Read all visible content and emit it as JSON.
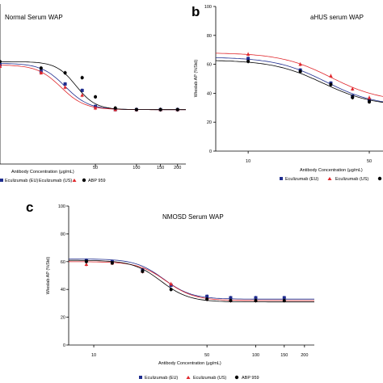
{
  "panels": [
    {
      "id": "a",
      "letter": "",
      "title": "Normal Serum WAP",
      "ylabel": "",
      "xlabel": "Antibody Concentration (μg/mL)",
      "legend": [
        "Eculizumab (EU)",
        "Eculizumab (US)",
        "ABP 959"
      ]
    },
    {
      "id": "b",
      "letter": "b",
      "title": "aHUS serum WAP",
      "ylabel": "Wieslab AP (%Std)",
      "xlabel": "Antibody Concentration (μg/mL)",
      "legend": [
        "Eculizumab (EU)",
        "Eculizumab (US)"
      ]
    },
    {
      "id": "c",
      "letter": "c",
      "title": "NMOSD Serum WAP",
      "ylabel": "Wieslab AP (%Std)",
      "xlabel": "Antibody Concentration (μg/mL)",
      "legend": [
        "Eculizumab (EU)",
        "Eculizumab (US)",
        "ABP 959"
      ]
    }
  ],
  "colors": {
    "eu": "#1f2d8f",
    "us": "#e0262b",
    "abp": "#000000",
    "axis": "#000000"
  },
  "chart_data": [
    {
      "type": "scatter",
      "panel": "a",
      "title": "Normal Serum WAP",
      "xlabel": "Antibody Concentration (μg/mL)",
      "xscale": "log",
      "xticks": [
        50,
        100,
        150,
        200
      ],
      "xlim": [
        10,
        230
      ],
      "ylim": [
        0,
        100
      ],
      "series": [
        {
          "name": "Eculizumab (EU)",
          "marker": "square",
          "x": [
            10,
            20,
            30,
            40,
            50,
            70,
            100,
            150,
            200
          ],
          "y": [
            62,
            58,
            50,
            46,
            36,
            34,
            34,
            34,
            34
          ],
          "curve": {
            "top": 63,
            "bottom": 34,
            "ec50": 30,
            "hill": 5
          }
        },
        {
          "name": "Eculizumab (US)",
          "marker": "triangle",
          "x": [
            10,
            20,
            30,
            40,
            50,
            70,
            100,
            150,
            200
          ],
          "y": [
            61,
            57,
            48,
            43,
            35,
            34,
            34,
            34,
            34
          ],
          "curve": {
            "top": 62,
            "bottom": 34,
            "ec50": 28,
            "hill": 5
          }
        },
        {
          "name": "ABP 959",
          "marker": "circle",
          "x": [
            10,
            20,
            30,
            40,
            50,
            70,
            100,
            150,
            200
          ],
          "y": [
            64,
            60,
            57,
            54,
            42,
            35,
            34,
            34,
            34
          ],
          "curve": {
            "top": 64,
            "bottom": 34,
            "ec50": 36,
            "hill": 6
          }
        }
      ]
    },
    {
      "type": "scatter",
      "panel": "b",
      "title": "aHUS serum WAP",
      "ylabel": "Wieslab AP (%Std)",
      "xlabel": "Antibody Concentration (μg/mL)",
      "xscale": "log",
      "xticks": [
        10,
        50
      ],
      "xlim": [
        6.5,
        60
      ],
      "ylim": [
        0,
        100
      ],
      "yticks": [
        0,
        20,
        40,
        60,
        80,
        100
      ],
      "series": [
        {
          "name": "Eculizumab (EU)",
          "marker": "square",
          "x": [
            10,
            20,
            30,
            40,
            50
          ],
          "y": [
            64,
            56,
            47,
            38,
            35
          ],
          "curve": {
            "top": 65,
            "bottom": 31,
            "ec50": 28,
            "hill": 3
          }
        },
        {
          "name": "Eculizumab (US)",
          "marker": "triangle",
          "x": [
            10,
            20,
            30,
            40,
            50
          ],
          "y": [
            67,
            60,
            52,
            43,
            37
          ],
          "curve": {
            "top": 68,
            "bottom": 34,
            "ec50": 30,
            "hill": 3
          }
        },
        {
          "name": "",
          "marker": "circle",
          "x": [
            10,
            20,
            30,
            40,
            50
          ],
          "y": [
            62,
            55,
            46,
            37,
            34
          ],
          "curve": {
            "top": 63,
            "bottom": 31,
            "ec50": 27,
            "hill": 3
          }
        }
      ]
    },
    {
      "type": "scatter",
      "panel": "c",
      "title": "NMOSD Serum WAP",
      "ylabel": "Wieslab AP (%Std)",
      "xlabel": "Antibody Concentration (μg/mL)",
      "xscale": "log",
      "xticks": [
        10,
        50,
        100,
        150,
        200
      ],
      "xlim": [
        7,
        230
      ],
      "ylim": [
        0,
        100
      ],
      "yticks": [
        0,
        20,
        40,
        60,
        80,
        100
      ],
      "series": [
        {
          "name": "Eculizumab (EU)",
          "marker": "square",
          "x": [
            9,
            13,
            20,
            30,
            50,
            70,
            100,
            150
          ],
          "y": [
            61,
            60,
            54,
            43,
            35,
            34,
            34,
            34
          ],
          "curve": {
            "top": 62,
            "bottom": 33,
            "ec50": 27,
            "hill": 5
          }
        },
        {
          "name": "Eculizumab (US)",
          "marker": "triangle",
          "x": [
            9,
            13,
            20,
            30,
            50,
            70,
            100,
            150
          ],
          "y": [
            58,
            59,
            53,
            44,
            33,
            32,
            32,
            32
          ],
          "curve": {
            "top": 60,
            "bottom": 32,
            "ec50": 28,
            "hill": 5
          }
        },
        {
          "name": "ABP 959",
          "marker": "circle",
          "x": [
            9,
            13,
            20,
            30,
            50,
            70,
            100,
            150
          ],
          "y": [
            60,
            59,
            53,
            40,
            33,
            32,
            32,
            32
          ],
          "curve": {
            "top": 61,
            "bottom": 31,
            "ec50": 26,
            "hill": 5
          }
        }
      ]
    }
  ]
}
